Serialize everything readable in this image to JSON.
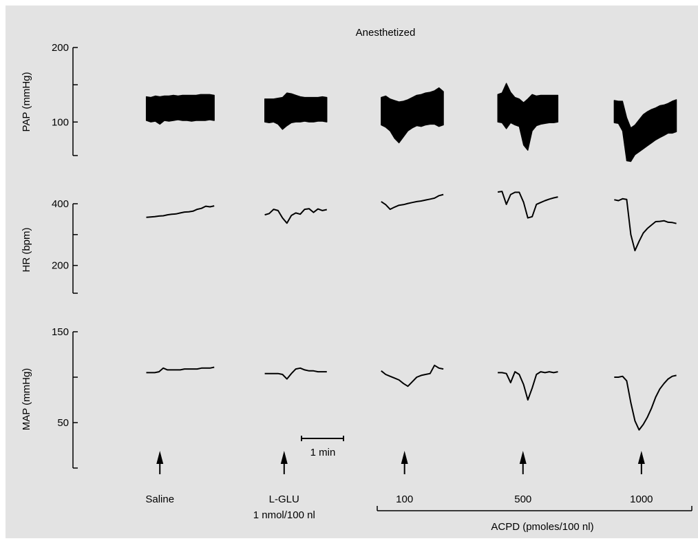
{
  "chart_data": {
    "type": "line",
    "title": "Anesthetized",
    "panels": [
      {
        "id": "pap",
        "ylabel": "PAP (mmHg)",
        "ylim": [
          55,
          200
        ],
        "ticks": [
          {
            "value": 200,
            "label": "200"
          },
          {
            "value": 150,
            "label": ""
          },
          {
            "value": 100,
            "label": "100"
          },
          {
            "value": 55,
            "label": ""
          }
        ],
        "segments": [
          {
            "id": "saline",
            "kind": "pulsatile",
            "x0": 0.0,
            "x1": 1.75,
            "min": [
              102,
              100,
              101,
              97,
              102,
              101,
              102,
              103,
              102,
              102,
              101,
              102,
              102,
              102,
              103,
              102
            ],
            "max": [
              134,
              133,
              135,
              134,
              135,
              135,
              136,
              135,
              136,
              136,
              136,
              136,
              137,
              137,
              137,
              136
            ]
          },
          {
            "id": "lglu",
            "kind": "pulsatile",
            "x0": 3.05,
            "x1": 4.65,
            "min": [
              100,
              99,
              100,
              97,
              90,
              95,
              99,
              100,
              100,
              101,
              100,
              100,
              101,
              101,
              100
            ],
            "max": [
              131,
              131,
              131,
              132,
              133,
              139,
              138,
              136,
              134,
              133,
              133,
              133,
              133,
              134,
              133
            ]
          },
          {
            "id": "acpd100",
            "kind": "pulsatile",
            "x0": 6.05,
            "x1": 7.65,
            "min": [
              96,
              93,
              88,
              78,
              72,
              80,
              88,
              92,
              95,
              94,
              96,
              97,
              97,
              94,
              96
            ],
            "max": [
              133,
              135,
              131,
              129,
              127,
              128,
              130,
              133,
              136,
              137,
              139,
              140,
              142,
              146,
              141
            ]
          },
          {
            "id": "acpd500",
            "kind": "pulsatile",
            "x0": 9.05,
            "x1": 10.6,
            "min": [
              100,
              99,
              91,
              99,
              96,
              94,
              69,
              62,
              88,
              95,
              97,
              98,
              99,
              99,
              100
            ],
            "max": [
              137,
              139,
              152,
              140,
              133,
              131,
              126,
              131,
              137,
              135,
              136,
              136,
              136,
              136,
              136
            ]
          },
          {
            "id": "acpd1000",
            "kind": "pulsatile",
            "x0": 12.05,
            "x1": 13.65,
            "min": [
              99,
              98,
              88,
              48,
              47,
              56,
              60,
              64,
              68,
              72,
              76,
              79,
              82,
              85,
              85,
              87
            ],
            "max": [
              129,
              128,
              128,
              106,
              92,
              96,
              103,
              110,
              114,
              117,
              119,
              122,
              123,
              125,
              128,
              130
            ]
          }
        ]
      },
      {
        "id": "hr",
        "ylabel": "HR (bpm)",
        "ylim": [
          110,
          400
        ],
        "ticks": [
          {
            "value": 400,
            "label": "400"
          },
          {
            "value": 300,
            "label": ""
          },
          {
            "value": 200,
            "label": "200"
          },
          {
            "value": 110,
            "label": ""
          }
        ],
        "segments": [
          {
            "id": "saline",
            "kind": "line",
            "x0": 0.0,
            "x1": 1.75,
            "y": [
              356,
              357,
              358,
              360,
              361,
              364,
              366,
              367,
              370,
              373,
              374,
              376,
              382,
              385,
              392,
              390,
              393
            ]
          },
          {
            "id": "lglu",
            "kind": "line",
            "x0": 3.05,
            "x1": 4.65,
            "y": [
              364,
              368,
              382,
              378,
              354,
              337,
              362,
              370,
              366,
              382,
              384,
              372,
              383,
              378,
              381
            ]
          },
          {
            "id": "acpd100",
            "kind": "line",
            "x0": 6.05,
            "x1": 7.65,
            "y": [
              407,
              397,
              382,
              389,
              395,
              397,
              401,
              404,
              407,
              409,
              412,
              415,
              418,
              426,
              430
            ]
          },
          {
            "id": "acpd500",
            "kind": "line",
            "x0": 9.05,
            "x1": 10.6,
            "y": [
              438,
              440,
              398,
              430,
              437,
              437,
              405,
              354,
              358,
              398,
              404,
              410,
              415,
              419,
              422
            ]
          },
          {
            "id": "acpd1000",
            "kind": "line",
            "x0": 12.05,
            "x1": 13.65,
            "y": [
              413,
              410,
              416,
              414,
              300,
              248,
              278,
              305,
              320,
              331,
              342,
              343,
              345,
              340,
              339,
              336
            ]
          }
        ]
      },
      {
        "id": "map",
        "ylabel": "MAP (mmHg)",
        "ylim": [
          0,
          150
        ],
        "ticks": [
          {
            "value": 150,
            "label": "150"
          },
          {
            "value": 100,
            "label": ""
          },
          {
            "value": 50,
            "label": "50"
          },
          {
            "value": 0,
            "label": ""
          }
        ],
        "segments": [
          {
            "id": "saline",
            "kind": "line",
            "x0": 0.0,
            "x1": 1.75,
            "y": [
              105,
              105,
              105,
              106,
              110,
              108,
              108,
              108,
              108,
              109,
              109,
              109,
              109,
              110,
              110,
              110,
              111
            ]
          },
          {
            "id": "lglu",
            "kind": "line",
            "x0": 3.05,
            "x1": 4.65,
            "y": [
              104,
              104,
              104,
              104,
              103,
              98,
              104,
              109,
              110,
              108,
              107,
              107,
              106,
              106,
              106
            ]
          },
          {
            "id": "acpd100",
            "kind": "line",
            "x0": 6.05,
            "x1": 7.65,
            "y": [
              107,
              103,
              101,
              99,
              97,
              93,
              90,
              95,
              100,
              102,
              103,
              104,
              113,
              110,
              109
            ]
          },
          {
            "id": "acpd500",
            "kind": "line",
            "x0": 9.05,
            "x1": 10.6,
            "y": [
              105,
              105,
              104,
              94,
              106,
              103,
              92,
              75,
              88,
              103,
              106,
              105,
              106,
              105,
              106
            ]
          },
          {
            "id": "acpd1000",
            "kind": "line",
            "x0": 12.05,
            "x1": 13.65,
            "y": [
              100,
              100,
              101,
              96,
              72,
              52,
              42,
              48,
              56,
              66,
              78,
              87,
              93,
              98,
              101,
              102
            ]
          }
        ]
      }
    ],
    "time_axis": {
      "xlim": [
        -0.7,
        14.1
      ],
      "scale_bar_minutes": 1
    },
    "scale_bar_label": "1 min",
    "injections": [
      {
        "id": "saline",
        "label": "Saline",
        "sublabel": "",
        "time": 0.35
      },
      {
        "id": "lglu",
        "label": "L-GLU",
        "sublabel": "1 nmol/100 nl",
        "time": 3.55
      },
      {
        "id": "acpd100",
        "label": "100",
        "sublabel": "",
        "time": 6.65
      },
      {
        "id": "acpd500",
        "label": "500",
        "sublabel": "",
        "time": 9.7
      },
      {
        "id": "acpd1000",
        "label": "1000",
        "sublabel": "",
        "time": 12.75
      }
    ],
    "group_bracket": {
      "label": "ACPD (pmoles/100 nl)",
      "from": "acpd100",
      "to": "acpd1000"
    }
  }
}
